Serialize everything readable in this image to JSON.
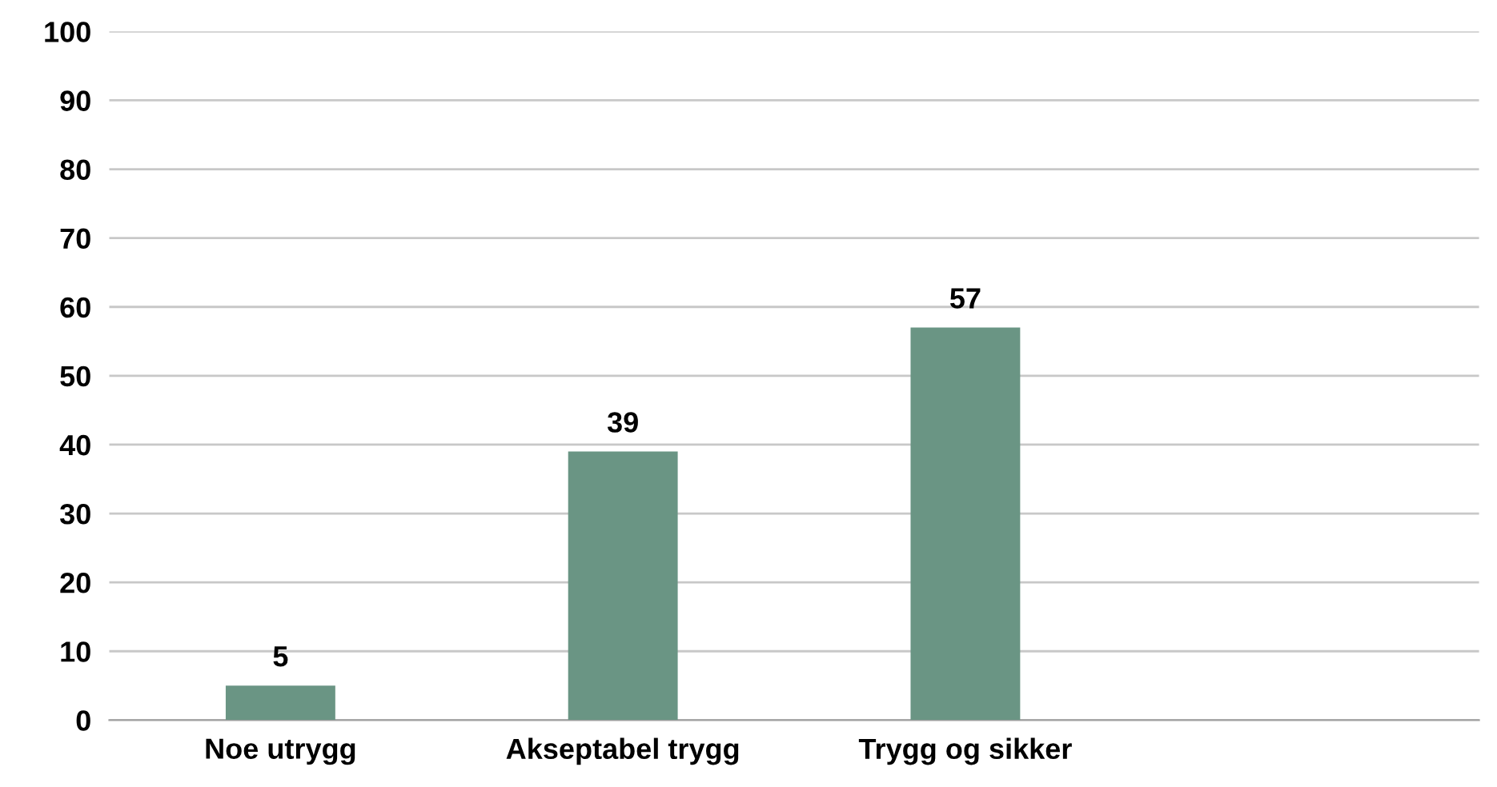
{
  "chart_data": {
    "type": "bar",
    "categories": [
      "Noe utrygg",
      "Akseptabel trygg",
      "Trygg og sikker",
      null
    ],
    "values": [
      5,
      39,
      57,
      null
    ],
    "color": "#6a9584",
    "ylim": [
      0,
      100
    ],
    "yticks": [
      0,
      10,
      20,
      30,
      40,
      50,
      60,
      70,
      80,
      90,
      100
    ],
    "grid": "y",
    "data_labels": true
  }
}
